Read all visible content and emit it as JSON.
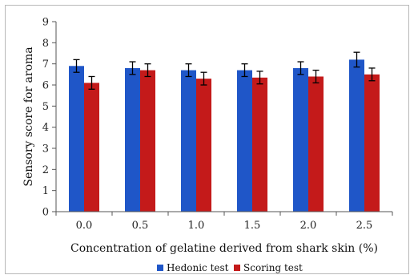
{
  "chart_data": {
    "type": "bar",
    "categories": [
      "0.0",
      "0.5",
      "1.0",
      "1.5",
      "2.0",
      "2.5"
    ],
    "series": [
      {
        "name": "Hedonic test",
        "color": "#1F56C8",
        "values": [
          6.9,
          6.8,
          6.7,
          6.7,
          6.8,
          7.2
        ],
        "errors": [
          0.3,
          0.3,
          0.3,
          0.3,
          0.3,
          0.35
        ]
      },
      {
        "name": "Scoring test",
        "color": "#C41A1A",
        "values": [
          6.1,
          6.7,
          6.3,
          6.35,
          6.4,
          6.5
        ],
        "errors": [
          0.3,
          0.3,
          0.3,
          0.3,
          0.3,
          0.3
        ]
      }
    ],
    "title": "",
    "xlabel": "Concentration of gelatine derived from shark skin (%)",
    "ylabel": "Sensory score for aroma",
    "ylim": [
      0,
      9
    ],
    "yticks": [
      "0",
      "1",
      "2",
      "3",
      "4",
      "5",
      "6",
      "7",
      "8",
      "9"
    ],
    "grid": false,
    "legend_position": "bottom-center",
    "error_bar_color": "#000000"
  }
}
